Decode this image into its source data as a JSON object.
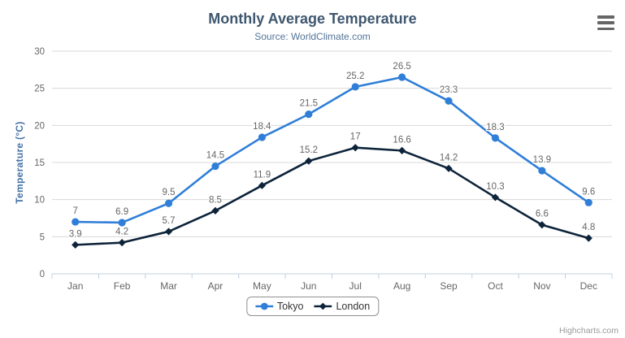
{
  "header": {
    "title": "Monthly Average Temperature",
    "subtitle": "Source: WorldClimate.com"
  },
  "credits": {
    "label": "Highcharts.com"
  },
  "colors": {
    "title": "#3e576f",
    "subtitle": "#55759a",
    "axis_labels": "#666666",
    "y_axis_title": "#4572a7",
    "grid_line": "#d8d8d8",
    "axis_line": "#c0d0e0",
    "legend_border": "#909090",
    "legend_text": "#333333",
    "data_label": "#666666",
    "credits_text": "#9a9a9a",
    "menu_icon": "#666666",
    "background": "#ffffff",
    "tokyo_series": "#2f7ed8",
    "london_series": "#0d233a"
  },
  "chart_data": {
    "type": "line",
    "title": "Monthly Average Temperature",
    "subtitle": "Source: WorldClimate.com",
    "categories": [
      "Jan",
      "Feb",
      "Mar",
      "Apr",
      "May",
      "Jun",
      "Jul",
      "Aug",
      "Sep",
      "Oct",
      "Nov",
      "Dec"
    ],
    "series": [
      {
        "name": "Tokyo",
        "color": "#2f7ed8",
        "marker": "circle",
        "values": [
          7,
          6.9,
          9.5,
          14.5,
          18.4,
          21.5,
          25.2,
          26.5,
          23.3,
          18.3,
          13.9,
          9.6
        ]
      },
      {
        "name": "London",
        "color": "#0d233a",
        "marker": "diamond",
        "values": [
          3.9,
          4.2,
          5.7,
          8.5,
          11.9,
          15.2,
          17,
          16.6,
          14.2,
          10.3,
          6.6,
          4.8
        ]
      }
    ],
    "xlabel": "",
    "ylabel": "Temperature (°C)",
    "ylim": [
      0,
      30
    ],
    "y_ticks": [
      0,
      5,
      10,
      15,
      20,
      25,
      30
    ],
    "grid": true,
    "data_labels": true,
    "legend_position": "bottom"
  }
}
